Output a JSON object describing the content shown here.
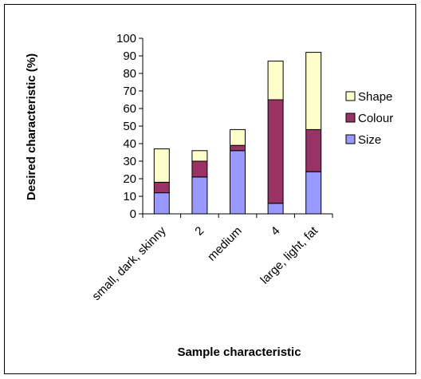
{
  "chart_data": {
    "type": "bar",
    "stacked": true,
    "categories": [
      "small, dark, skinny",
      "2",
      "medium",
      "4",
      "large, light, fat"
    ],
    "series": [
      {
        "name": "Size",
        "values": [
          12,
          21,
          36,
          6,
          24
        ],
        "color": "#9999ff"
      },
      {
        "name": "Colour",
        "values": [
          6,
          9,
          3,
          59,
          24
        ],
        "color": "#993366"
      },
      {
        "name": "Shape",
        "values": [
          19,
          6,
          9,
          22,
          44
        ],
        "color": "#ffffcc"
      }
    ],
    "legend_order": [
      "Shape",
      "Colour",
      "Size"
    ],
    "xlabel": "Sample characteristic",
    "ylabel": "Desired characteristic (%)",
    "ylim": [
      0,
      100
    ],
    "yticks": [
      0,
      10,
      20,
      30,
      40,
      50,
      60,
      70,
      80,
      90,
      100
    ],
    "grid": false,
    "legend_position": "right"
  }
}
